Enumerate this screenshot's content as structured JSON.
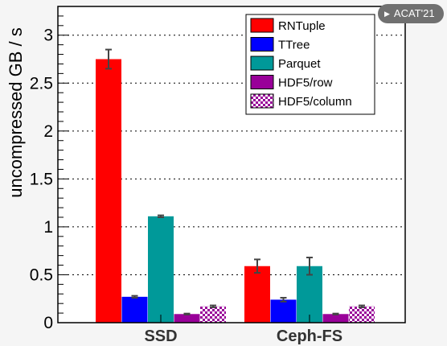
{
  "badge": {
    "label": "ACAT'21",
    "icon": "play-triangle-icon"
  },
  "chart_data": {
    "type": "bar",
    "title": "",
    "xlabel": "",
    "ylabel": "uncompressed GB / s",
    "ylim": [
      0,
      3.3
    ],
    "yticks": [
      0,
      0.5,
      1,
      1.5,
      2,
      2.5,
      3
    ],
    "ytick_labels": [
      "0",
      "0.5",
      "1",
      "1.5",
      "2",
      "2.5",
      "3"
    ],
    "grid": "horizontal dotted",
    "legend_position": "top-right",
    "categories": [
      "SSD",
      "Ceph-FS"
    ],
    "series": [
      {
        "name": "RNTuple",
        "color": "#ff0000",
        "pattern": "solid",
        "values": [
          2.75,
          0.59
        ],
        "errors": [
          0.1,
          0.07
        ]
      },
      {
        "name": "TTree",
        "color": "#0000ff",
        "pattern": "solid",
        "values": [
          0.27,
          0.24
        ],
        "errors": [
          0.01,
          0.02
        ]
      },
      {
        "name": "Parquet",
        "color": "#009999",
        "pattern": "solid",
        "values": [
          1.11,
          0.59
        ],
        "errors": [
          0.01,
          0.09
        ]
      },
      {
        "name": "HDF5/row",
        "color": "#990099",
        "pattern": "solid",
        "values": [
          0.09,
          0.09
        ],
        "errors": [
          0.005,
          0.005
        ]
      },
      {
        "name": "HDF5/column",
        "color": "#990099",
        "pattern": "checker",
        "values": [
          0.17,
          0.17
        ],
        "errors": [
          0.01,
          0.01
        ]
      }
    ]
  }
}
